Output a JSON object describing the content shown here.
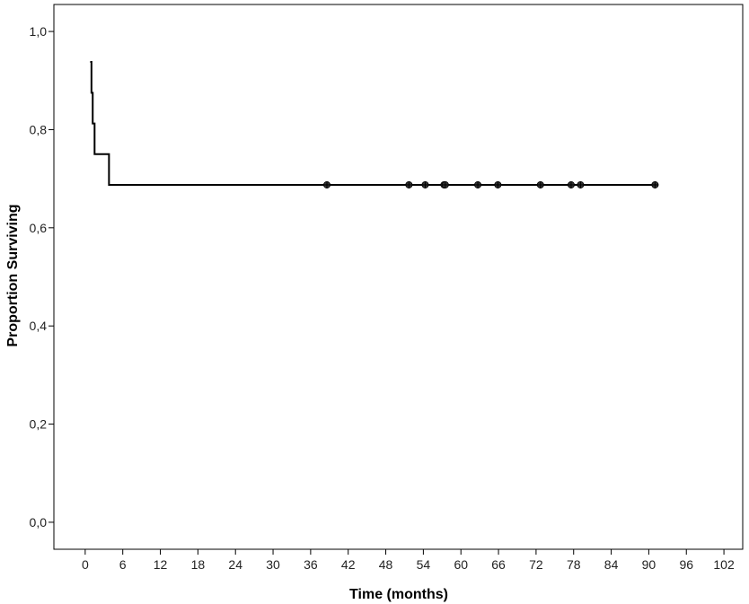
{
  "chart_data": {
    "type": "line",
    "subtype": "kaplan-meier-survival",
    "xlabel": "Time (months)",
    "ylabel": "Proportion Surviving",
    "xlim": [
      -5,
      105
    ],
    "ylim": [
      -0.055,
      1.055
    ],
    "x_ticks": [
      0,
      6,
      12,
      18,
      24,
      30,
      36,
      42,
      48,
      54,
      60,
      66,
      72,
      78,
      84,
      90,
      96,
      102
    ],
    "x_tick_labels": [
      "0",
      "6",
      "12",
      "18",
      "24",
      "30",
      "36",
      "42",
      "48",
      "54",
      "60",
      "66",
      "72",
      "78",
      "84",
      "90",
      "96",
      "102"
    ],
    "y_ticks": [
      0.0,
      0.2,
      0.4,
      0.6,
      0.8,
      1.0
    ],
    "y_tick_labels": [
      "0,0",
      "0,2",
      "0,4",
      "0,6",
      "0,8",
      "1,0"
    ],
    "grid": false,
    "legend": "none",
    "line_color": "#000000",
    "series": [
      {
        "step_points": [
          {
            "x": 0.8,
            "y": 0.938
          },
          {
            "x": 1.0,
            "y": 0.875
          },
          {
            "x": 1.2,
            "y": 0.8125
          },
          {
            "x": 1.5,
            "y": 0.75
          },
          {
            "x": 3.8,
            "y": 0.6875
          },
          {
            "x": 91.0,
            "y": 0.6875
          }
        ],
        "censored": [
          {
            "x": 38.6,
            "y": 0.6875
          },
          {
            "x": 51.7,
            "y": 0.6875
          },
          {
            "x": 54.3,
            "y": 0.6875
          },
          {
            "x": 57.3,
            "y": 0.6875
          },
          {
            "x": 57.5,
            "y": 0.6875
          },
          {
            "x": 62.7,
            "y": 0.6875
          },
          {
            "x": 65.9,
            "y": 0.6875
          },
          {
            "x": 72.7,
            "y": 0.6875
          },
          {
            "x": 77.6,
            "y": 0.6875
          },
          {
            "x": 79.1,
            "y": 0.6875
          },
          {
            "x": 91.0,
            "y": 0.6875
          }
        ]
      }
    ]
  }
}
